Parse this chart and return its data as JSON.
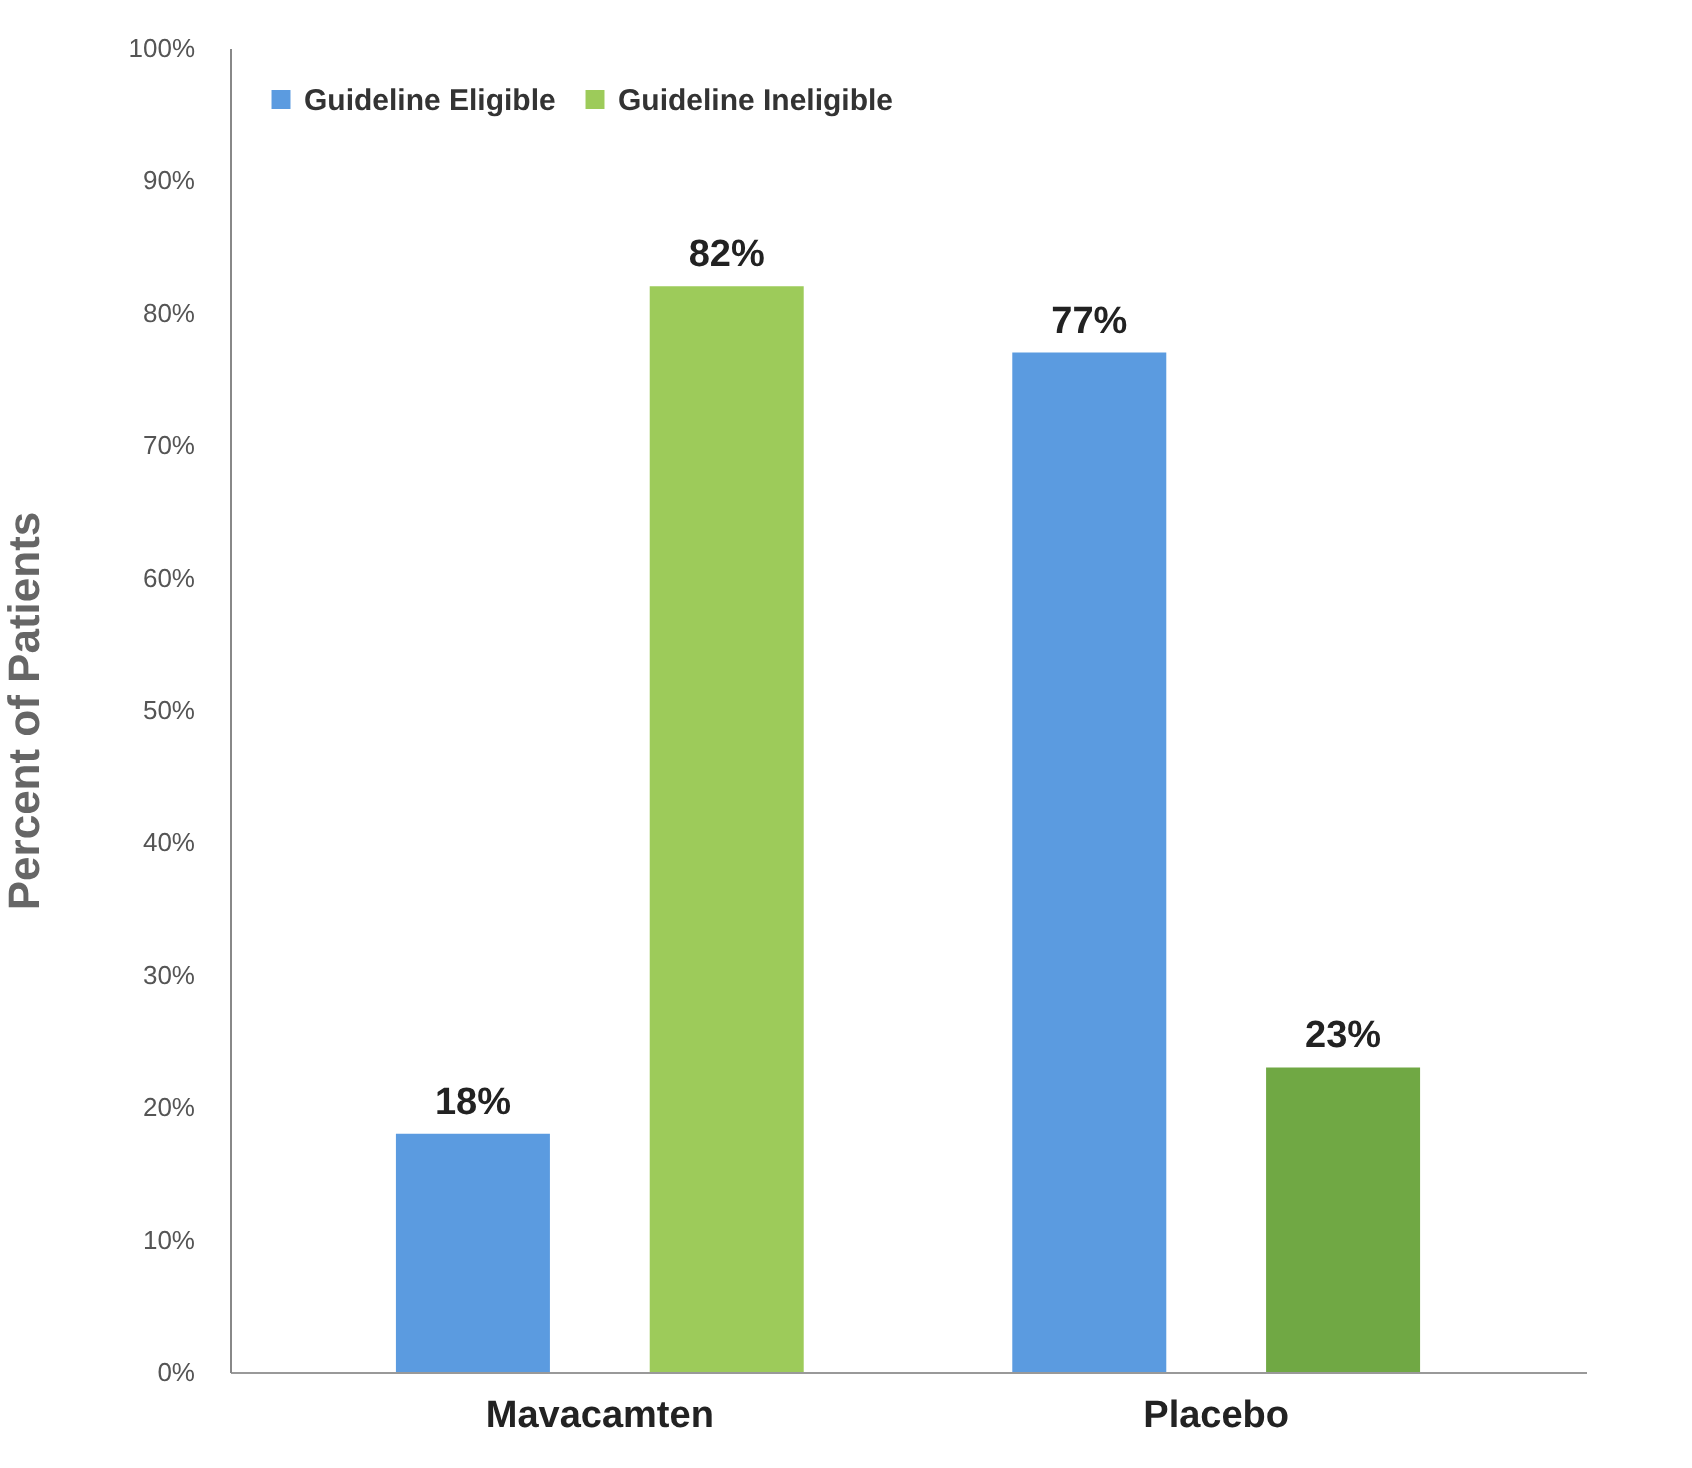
{
  "chart_data": {
    "type": "bar",
    "ylabel": "Percent of Patients",
    "categories": [
      "Mavacamten",
      "Placebo"
    ],
    "series": [
      {
        "name": "Guideline Eligible",
        "color": "#5b9be0",
        "values": [
          18,
          77
        ],
        "value_labels": [
          "18%",
          "77%"
        ]
      },
      {
        "name": "Guideline Ineligible",
        "color": "#9dcb5a",
        "colors": [
          "#9dcb5a",
          "#70a844"
        ],
        "values": [
          82,
          23
        ],
        "value_labels": [
          "82%",
          "23%"
        ]
      }
    ],
    "ylim": [
      0,
      100
    ],
    "yticks": [
      {
        "value": 0,
        "label": "0%"
      },
      {
        "value": 10,
        "label": "10%"
      },
      {
        "value": 20,
        "label": "20%"
      },
      {
        "value": 30,
        "label": "30%"
      },
      {
        "value": 40,
        "label": "40%"
      },
      {
        "value": 50,
        "label": "50%"
      },
      {
        "value": 60,
        "label": "60%"
      },
      {
        "value": 70,
        "label": "70%"
      },
      {
        "value": 80,
        "label": "80%"
      },
      {
        "value": 90,
        "label": "90%"
      },
      {
        "value": 100,
        "label": "100%"
      }
    ],
    "legend": "top left",
    "grid": false
  }
}
